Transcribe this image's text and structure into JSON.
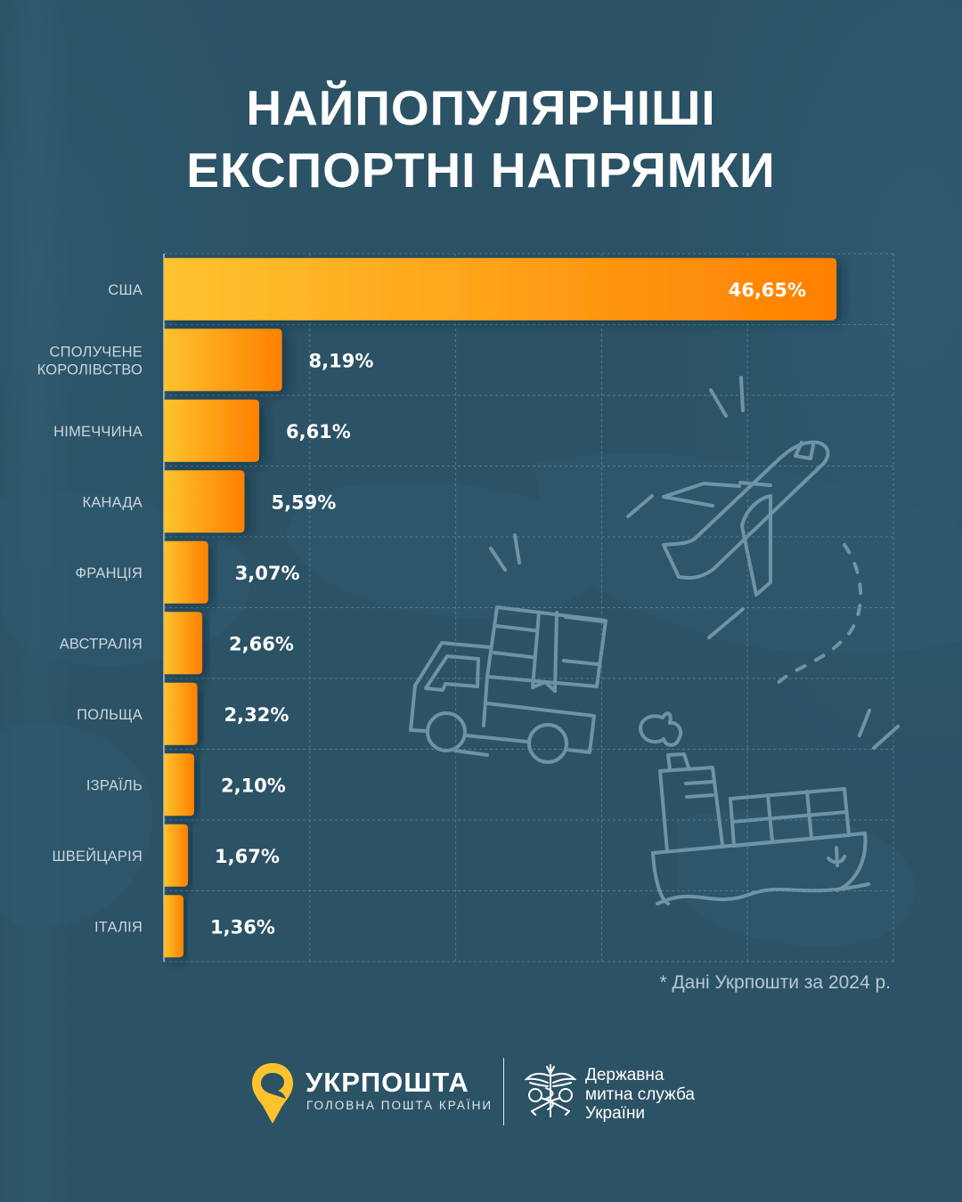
{
  "title": {
    "line1": "НАЙПОПУЛЯРНІШІ",
    "line2": "ЕКСПОРТНІ НАПРЯМКИ"
  },
  "chart_data": {
    "type": "bar",
    "orientation": "horizontal",
    "title": "НАЙПОПУЛЯРНІШІ ЕКСПОРТНІ НАПРЯМКИ",
    "xlabel": "",
    "ylabel": "",
    "unit": "%",
    "xlim": [
      0,
      50.6
    ],
    "grid": true,
    "categories": [
      [
        "США"
      ],
      [
        "СПОЛУЧЕНЕ",
        "КОРОЛІВСТВО"
      ],
      [
        "НІМЕЧЧИНА"
      ],
      [
        "КАНАДА"
      ],
      [
        "ФРАНЦІЯ"
      ],
      [
        "АВСТРАЛІЯ"
      ],
      [
        "ПОЛЬЩА"
      ],
      [
        "ІЗРАЇЛЬ"
      ],
      [
        "ШВЕЙЦАРІЯ"
      ],
      [
        "ІТАЛІЯ"
      ]
    ],
    "values": [
      46.65,
      8.19,
      6.61,
      5.59,
      3.07,
      2.66,
      2.32,
      2.1,
      1.67,
      1.36
    ],
    "value_labels": [
      "46,65%",
      "8,19%",
      "6,61%",
      "5,59%",
      "3,07%",
      "2,66%",
      "2,32%",
      "2,10%",
      "1,67%",
      "1,36%"
    ],
    "bar_gradient": [
      "#fdc32f",
      "#ff8000"
    ]
  },
  "footnote": "* Дані Укрпошти за 2024 р.",
  "logos": {
    "ukrposhta": {
      "name": "УКРПОШТА",
      "tagline": "ГОЛОВНА ПОШТА КРАЇНИ",
      "color": "#fdc32f"
    },
    "customs": {
      "line1": "Державна",
      "line2": "митна служба",
      "line3": "України"
    }
  },
  "colors": {
    "background": "#2b5265",
    "illustration_stroke": "#7a9fb0"
  }
}
